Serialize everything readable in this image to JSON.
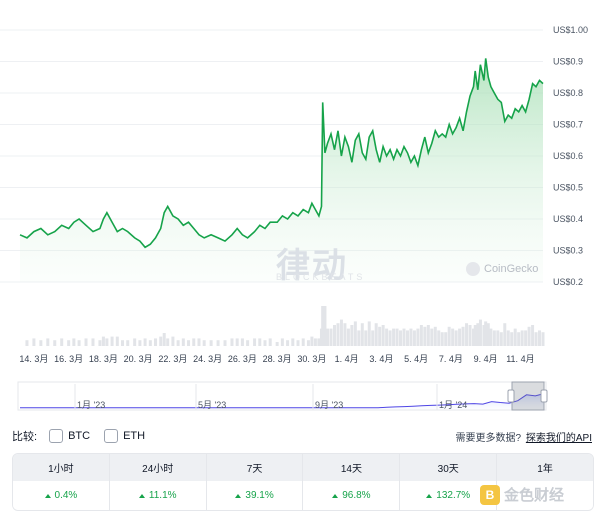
{
  "chart_data": {
    "type": "area",
    "currency_prefix": "US$",
    "y_ticks": [
      "US$1.00",
      "US$0.9",
      "US$0.8",
      "US$0.7",
      "US$0.6",
      "US$0.5",
      "US$0.4",
      "US$0.3",
      "US$0.2"
    ],
    "ylim": [
      0.2,
      1.0
    ],
    "x_ticks": [
      "14. 3月",
      "16. 3月",
      "18. 3月",
      "20. 3月",
      "22. 3月",
      "24. 3月",
      "26. 3月",
      "28. 3月",
      "30. 3月",
      "1. 4月",
      "3. 4月",
      "5. 4月",
      "7. 4月",
      "9. 4月",
      "11. 4月"
    ],
    "x_tick_days": [
      14,
      16,
      18,
      20,
      22,
      24,
      26,
      28,
      30,
      32,
      34,
      36,
      38,
      40,
      42
    ],
    "xlim_days": [
      13.2,
      43.3
    ],
    "series": [
      {
        "points": [
          [
            13.2,
            0.35
          ],
          [
            13.6,
            0.34
          ],
          [
            14.0,
            0.36
          ],
          [
            14.4,
            0.37
          ],
          [
            14.8,
            0.35
          ],
          [
            15.2,
            0.36
          ],
          [
            15.6,
            0.38
          ],
          [
            16.0,
            0.37
          ],
          [
            16.3,
            0.39
          ],
          [
            16.6,
            0.4
          ],
          [
            17.0,
            0.38
          ],
          [
            17.4,
            0.36
          ],
          [
            17.8,
            0.37
          ],
          [
            18.0,
            0.4
          ],
          [
            18.2,
            0.42
          ],
          [
            18.5,
            0.39
          ],
          [
            18.8,
            0.36
          ],
          [
            19.1,
            0.37
          ],
          [
            19.4,
            0.36
          ],
          [
            19.8,
            0.34
          ],
          [
            20.1,
            0.33
          ],
          [
            20.4,
            0.31
          ],
          [
            20.7,
            0.32
          ],
          [
            21.0,
            0.34
          ],
          [
            21.3,
            0.37
          ],
          [
            21.5,
            0.42
          ],
          [
            21.7,
            0.44
          ],
          [
            22.0,
            0.41
          ],
          [
            22.3,
            0.4
          ],
          [
            22.6,
            0.38
          ],
          [
            22.9,
            0.39
          ],
          [
            23.2,
            0.37
          ],
          [
            23.5,
            0.35
          ],
          [
            23.8,
            0.34
          ],
          [
            24.2,
            0.35
          ],
          [
            24.6,
            0.34
          ],
          [
            25.0,
            0.33
          ],
          [
            25.4,
            0.35
          ],
          [
            25.7,
            0.37
          ],
          [
            26.0,
            0.35
          ],
          [
            26.3,
            0.34
          ],
          [
            26.7,
            0.36
          ],
          [
            27.0,
            0.38
          ],
          [
            27.3,
            0.37
          ],
          [
            27.6,
            0.39
          ],
          [
            28.0,
            0.39
          ],
          [
            28.3,
            0.41
          ],
          [
            28.6,
            0.4
          ],
          [
            28.9,
            0.42
          ],
          [
            29.2,
            0.41
          ],
          [
            29.5,
            0.43
          ],
          [
            29.8,
            0.42
          ],
          [
            30.0,
            0.45
          ],
          [
            30.2,
            0.43
          ],
          [
            30.4,
            0.41
          ],
          [
            30.55,
            0.44
          ],
          [
            30.62,
            0.77
          ],
          [
            30.75,
            0.61
          ],
          [
            30.9,
            0.64
          ],
          [
            31.1,
            0.67
          ],
          [
            31.3,
            0.62
          ],
          [
            31.5,
            0.68
          ],
          [
            31.7,
            0.6
          ],
          [
            31.9,
            0.66
          ],
          [
            32.1,
            0.63
          ],
          [
            32.3,
            0.58
          ],
          [
            32.5,
            0.65
          ],
          [
            32.7,
            0.67
          ],
          [
            32.9,
            0.61
          ],
          [
            33.1,
            0.59
          ],
          [
            33.3,
            0.66
          ],
          [
            33.5,
            0.68
          ],
          [
            33.7,
            0.62
          ],
          [
            33.9,
            0.58
          ],
          [
            34.1,
            0.63
          ],
          [
            34.3,
            0.6
          ],
          [
            34.5,
            0.62
          ],
          [
            34.7,
            0.59
          ],
          [
            34.9,
            0.62
          ],
          [
            35.1,
            0.6
          ],
          [
            35.3,
            0.63
          ],
          [
            35.5,
            0.61
          ],
          [
            35.7,
            0.58
          ],
          [
            35.9,
            0.6
          ],
          [
            36.1,
            0.57
          ],
          [
            36.3,
            0.62
          ],
          [
            36.5,
            0.66
          ],
          [
            36.7,
            0.61
          ],
          [
            36.9,
            0.64
          ],
          [
            37.1,
            0.68
          ],
          [
            37.3,
            0.66
          ],
          [
            37.5,
            0.67
          ],
          [
            37.7,
            0.66
          ],
          [
            37.9,
            0.7
          ],
          [
            38.1,
            0.67
          ],
          [
            38.3,
            0.69
          ],
          [
            38.5,
            0.72
          ],
          [
            38.7,
            0.68
          ],
          [
            38.9,
            0.74
          ],
          [
            39.1,
            0.79
          ],
          [
            39.3,
            0.82
          ],
          [
            39.4,
            0.87
          ],
          [
            39.55,
            0.81
          ],
          [
            39.7,
            0.89
          ],
          [
            39.9,
            0.84
          ],
          [
            40.0,
            0.91
          ],
          [
            40.15,
            0.85
          ],
          [
            40.3,
            0.82
          ],
          [
            40.5,
            0.8
          ],
          [
            40.7,
            0.78
          ],
          [
            40.9,
            0.77
          ],
          [
            41.1,
            0.71
          ],
          [
            41.3,
            0.73
          ],
          [
            41.5,
            0.72
          ],
          [
            41.7,
            0.75
          ],
          [
            41.9,
            0.74
          ],
          [
            42.1,
            0.76
          ],
          [
            42.3,
            0.74
          ],
          [
            42.5,
            0.78
          ],
          [
            42.7,
            0.83
          ],
          [
            42.9,
            0.82
          ],
          [
            43.1,
            0.84
          ],
          [
            43.3,
            0.83
          ]
        ]
      }
    ],
    "nav_ticks": [
      "1月 '23",
      "5月 '23",
      "9月 '23",
      "1月 '24"
    ]
  },
  "watermarks": {
    "brand": "律动",
    "brand_sub": "BLOCKBEATS",
    "source": "CoinGecko",
    "footer_brand": "金色财经"
  },
  "compare": {
    "label": "比较:",
    "options": [
      "BTC",
      "ETH"
    ],
    "more_data_prompt": "需要更多数据?",
    "api_link": "探索我们的API"
  },
  "performance": {
    "headers": [
      "1小时",
      "24小时",
      "7天",
      "14天",
      "30天",
      "1年"
    ],
    "values": [
      "0.4%",
      "11.1%",
      "39.1%",
      "96.8%",
      "132.7%",
      ""
    ],
    "color_up": "#16a34a"
  },
  "colors": {
    "line": "#16a34a",
    "area_top": "#b7e4c2",
    "grid": "#eef0f3",
    "volume": "#e2e4e8"
  }
}
